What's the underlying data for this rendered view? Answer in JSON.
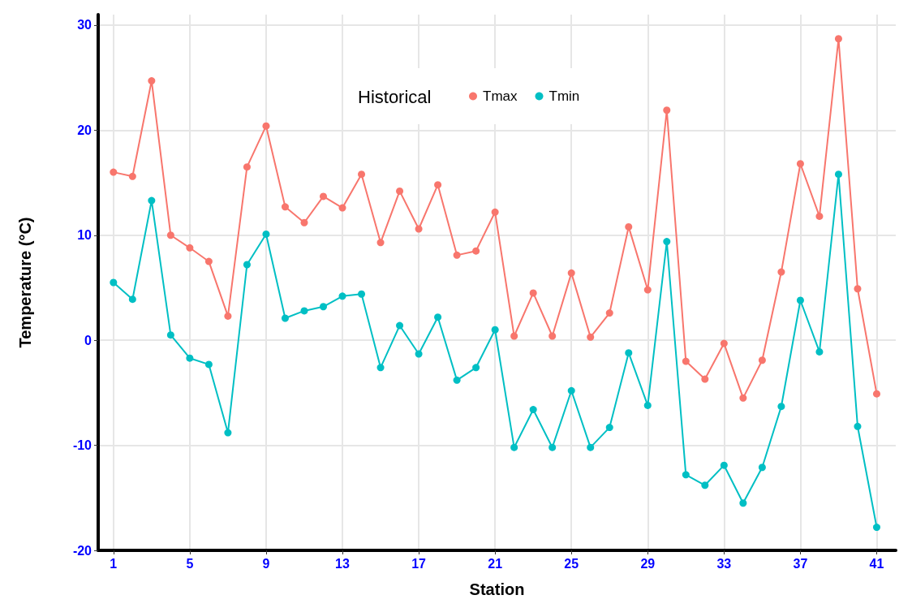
{
  "chart_data": {
    "type": "line",
    "xlabel": "Station",
    "ylabel": "Temperature (°C)",
    "legend_title": "Historical",
    "legend": "top",
    "grid": true,
    "marker": "circle",
    "line_style": "solid",
    "x": [
      1,
      2,
      3,
      4,
      5,
      6,
      7,
      8,
      9,
      10,
      11,
      12,
      13,
      14,
      15,
      16,
      17,
      18,
      19,
      20,
      21,
      22,
      23,
      24,
      25,
      26,
      27,
      28,
      29,
      30,
      31,
      32,
      33,
      34,
      35,
      36,
      37,
      38,
      39,
      40,
      41
    ],
    "xlim": [
      0.2,
      42
    ],
    "xticks": [
      1,
      5,
      9,
      13,
      17,
      21,
      25,
      29,
      33,
      37,
      41
    ],
    "ylim": [
      -20,
      31
    ],
    "yticks": [
      -20,
      -10,
      0,
      10,
      20,
      30
    ],
    "series": [
      {
        "name": "Tmax",
        "color": "#f8766d",
        "values": [
          16.0,
          15.6,
          24.7,
          10.0,
          8.8,
          7.5,
          2.3,
          16.5,
          20.4,
          12.7,
          11.2,
          13.7,
          12.6,
          15.8,
          9.3,
          14.2,
          10.6,
          14.8,
          8.1,
          8.5,
          12.2,
          0.4,
          4.5,
          0.4,
          6.4,
          0.3,
          2.6,
          10.8,
          4.8,
          21.9,
          -2.0,
          -3.7,
          -0.3,
          -5.5,
          -1.9,
          6.5,
          16.8,
          11.8,
          28.7,
          4.9,
          -5.1
        ]
      },
      {
        "name": "Tmin",
        "color": "#00bfc4",
        "values": [
          5.5,
          3.9,
          13.3,
          0.5,
          -1.7,
          -2.3,
          -8.8,
          7.2,
          10.1,
          2.1,
          2.8,
          3.2,
          4.2,
          4.4,
          -2.6,
          1.4,
          -1.3,
          2.2,
          -3.8,
          -2.6,
          1.0,
          -10.2,
          -6.6,
          -10.2,
          -4.8,
          -10.2,
          -8.3,
          -1.2,
          -6.2,
          9.4,
          -12.8,
          -13.8,
          -11.9,
          -15.5,
          -12.1,
          -6.3,
          3.8,
          -1.1,
          15.8,
          -8.2,
          -17.8
        ]
      }
    ]
  }
}
